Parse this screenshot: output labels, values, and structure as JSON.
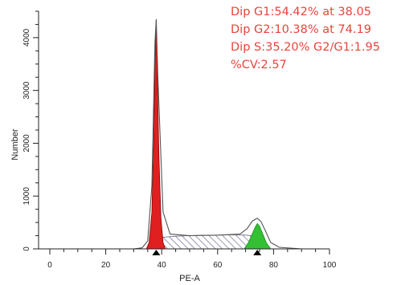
{
  "chart_data": {
    "type": "area",
    "title": "",
    "xlabel": "PE-A",
    "ylabel": "Number",
    "xlim": [
      0,
      100
    ],
    "ylim": [
      0,
      4500
    ],
    "x_ticks": [
      0,
      20,
      40,
      60,
      80,
      100
    ],
    "y_ticks": [
      0,
      1000,
      2000,
      3000,
      4000
    ],
    "grid": false,
    "legend": "none",
    "series": [
      {
        "name": "",
        "role": "G1 peak",
        "color": "#e02020",
        "x": [
          34.5,
          35.5,
          36.5,
          37.2,
          37.6,
          38.05,
          38.4,
          39.0,
          39.7,
          40.5,
          41.3
        ],
        "y": [
          0,
          120,
          700,
          2200,
          3600,
          4300,
          3400,
          1800,
          600,
          120,
          0
        ]
      },
      {
        "name": "",
        "role": "S phase",
        "color": "#6a6a8a",
        "x": [
          38.05,
          45,
          55,
          65,
          70,
          74.19
        ],
        "y": [
          210,
          240,
          260,
          265,
          262,
          240
        ]
      },
      {
        "name": "",
        "role": "G2 peak",
        "color": "#33c033",
        "x": [
          69.5,
          71.0,
          72.5,
          73.5,
          74.19,
          75.0,
          76.0,
          77.5,
          79.0
        ],
        "y": [
          0,
          120,
          300,
          420,
          480,
          430,
          300,
          110,
          0
        ]
      },
      {
        "name": "",
        "role": "histogram outline",
        "color": "#555555",
        "x": [
          30,
          33,
          35,
          36.5,
          37.6,
          38.05,
          38.6,
          40.5,
          43,
          50,
          60,
          68,
          70.5,
          72.5,
          74.19,
          75.5,
          77,
          79,
          82,
          90,
          100
        ],
        "y": [
          0,
          20,
          150,
          1200,
          3900,
          4350,
          3300,
          700,
          280,
          250,
          260,
          280,
          380,
          530,
          580,
          520,
          350,
          120,
          30,
          0,
          0
        ]
      }
    ],
    "markers": [
      38.05,
      74.19
    ]
  },
  "stats": {
    "line1": "Dip G1:54.42% at 38.05",
    "line2": "Dip G2:10.38% at 74.19",
    "line3": "Dip S:35.20% G2/G1:1.95",
    "line4": "%CV:2.57"
  }
}
